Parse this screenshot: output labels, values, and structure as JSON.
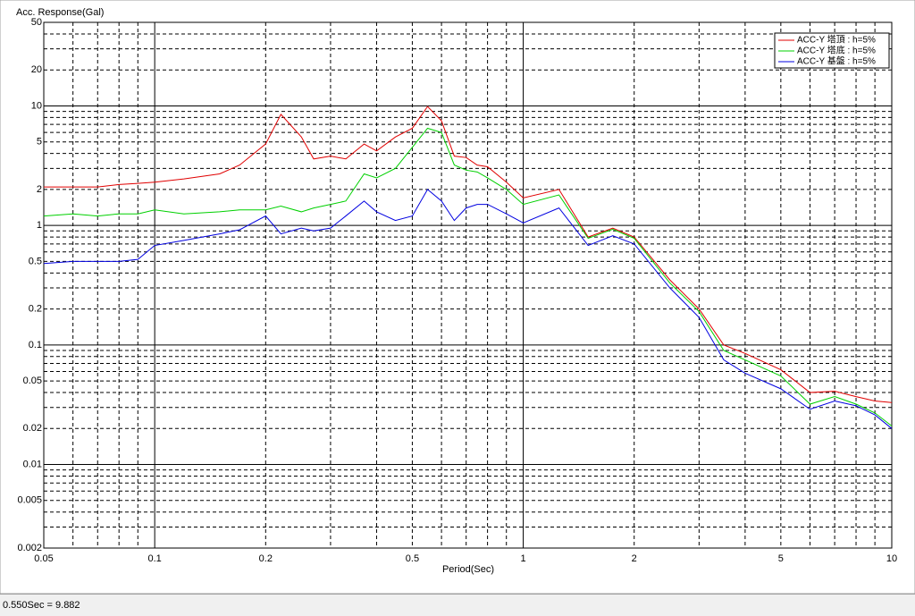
{
  "chart_data": {
    "type": "line",
    "title": "Acc. Response(Gal)",
    "xlabel": "Period(Sec)",
    "xlog": true,
    "ylog": true,
    "grid": true,
    "legend": "upper right",
    "x": [
      0.05,
      0.06,
      0.07,
      0.08,
      0.09,
      0.1,
      0.12,
      0.15,
      0.17,
      0.2,
      0.22,
      0.25,
      0.27,
      0.3,
      0.33,
      0.37,
      0.4,
      0.45,
      0.5,
      0.55,
      0.6,
      0.65,
      0.7,
      0.75,
      0.8,
      0.9,
      1.0,
      1.25,
      1.5,
      1.75,
      2.0,
      2.5,
      3.0,
      3.5,
      4.0,
      5.0,
      6.0,
      7.0,
      8.0,
      9.0,
      10.0
    ],
    "series": [
      {
        "name": "ACC-Y 塔頂 : h=5%",
        "color": "#e00000",
        "values": [
          2.1,
          2.1,
          2.1,
          2.2,
          2.25,
          2.3,
          2.45,
          2.7,
          3.2,
          4.8,
          8.5,
          5.5,
          3.6,
          3.8,
          3.6,
          4.8,
          4.2,
          5.5,
          6.5,
          9.882,
          7.5,
          3.8,
          3.7,
          3.2,
          3.1,
          2.3,
          1.7,
          2.0,
          0.8,
          0.95,
          0.8,
          0.35,
          0.2,
          0.1,
          0.085,
          0.062,
          0.04,
          0.041,
          0.037,
          0.034,
          0.033
        ]
      },
      {
        "name": "ACC-Y 塔底 : h=5%",
        "color": "#00d000",
        "values": [
          1.2,
          1.25,
          1.2,
          1.25,
          1.25,
          1.35,
          1.25,
          1.3,
          1.35,
          1.35,
          1.45,
          1.3,
          1.4,
          1.5,
          1.6,
          2.7,
          2.5,
          3.0,
          4.5,
          6.5,
          6.0,
          3.2,
          2.9,
          2.8,
          2.5,
          2.0,
          1.5,
          1.8,
          0.78,
          0.93,
          0.78,
          0.33,
          0.19,
          0.09,
          0.075,
          0.055,
          0.032,
          0.037,
          0.032,
          0.027,
          0.021
        ]
      },
      {
        "name": "ACC-Y 基盤 : h=5%",
        "color": "#0000e0",
        "values": [
          0.48,
          0.5,
          0.5,
          0.5,
          0.52,
          0.68,
          0.75,
          0.85,
          0.92,
          1.2,
          0.85,
          0.95,
          0.9,
          0.95,
          1.2,
          1.6,
          1.3,
          1.1,
          1.2,
          2.0,
          1.6,
          1.1,
          1.4,
          1.5,
          1.5,
          1.25,
          1.05,
          1.4,
          0.68,
          0.82,
          0.7,
          0.3,
          0.17,
          0.075,
          0.058,
          0.043,
          0.029,
          0.034,
          0.031,
          0.026,
          0.02
        ]
      }
    ],
    "xlim": [
      0.05,
      10
    ],
    "xticks": [
      0.05,
      0.1,
      0.2,
      0.5,
      1,
      2,
      5,
      10
    ],
    "ylim": [
      0.002,
      50
    ],
    "yticks": [
      0.002,
      0.005,
      0.01,
      0.02,
      0.05,
      0.1,
      0.2,
      0.5,
      1,
      2,
      5,
      10,
      20,
      50
    ]
  },
  "status_bar": "0.550Sec = 9.882"
}
